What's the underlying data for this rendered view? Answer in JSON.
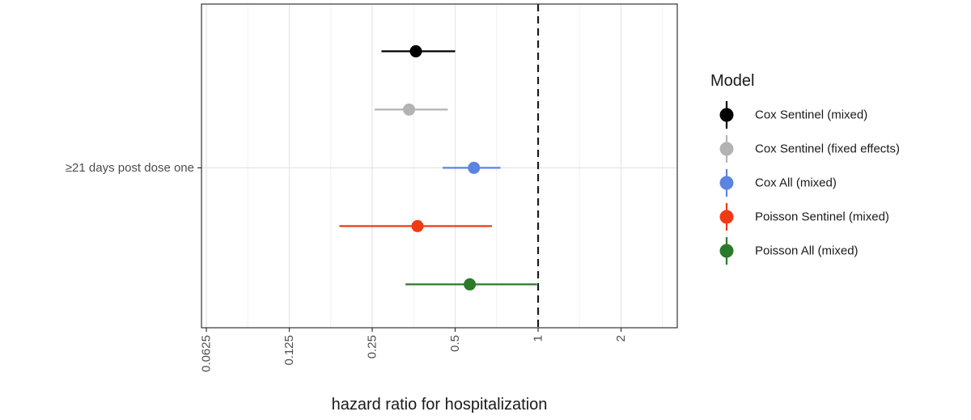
{
  "chart_data": {
    "type": "forest",
    "xlabel": "hazard ratio for hospitalization",
    "x_scale": "log2",
    "xlim": [
      0.06,
      3.2
    ],
    "x_ticks": [
      0.0625,
      0.125,
      0.25,
      0.5,
      1,
      2
    ],
    "x_tick_labels": [
      "0.0625",
      "0.125",
      "0.25",
      "0.5",
      "1",
      "2"
    ],
    "reference_line": 1,
    "categories": [
      "≥21 days post dose one"
    ],
    "grid": true,
    "legend": {
      "title": "Model",
      "placement": "right"
    },
    "series": [
      {
        "name": "Cox Sentinel (mixed)",
        "color": "#000000",
        "estimate": 0.36,
        "lower": 0.27,
        "upper": 0.5
      },
      {
        "name": "Cox Sentinel (fixed effects)",
        "color": "#b3b3b3",
        "estimate": 0.34,
        "lower": 0.255,
        "upper": 0.47
      },
      {
        "name": "Cox All (mixed)",
        "color": "#5b84e0",
        "estimate": 0.585,
        "lower": 0.45,
        "upper": 0.73
      },
      {
        "name": "Poisson Sentinel (mixed)",
        "color": "#f03a13",
        "estimate": 0.365,
        "lower": 0.19,
        "upper": 0.68
      },
      {
        "name": "Poisson All (mixed)",
        "color": "#2a7a2a",
        "estimate": 0.565,
        "lower": 0.33,
        "upper": 0.99
      }
    ]
  }
}
